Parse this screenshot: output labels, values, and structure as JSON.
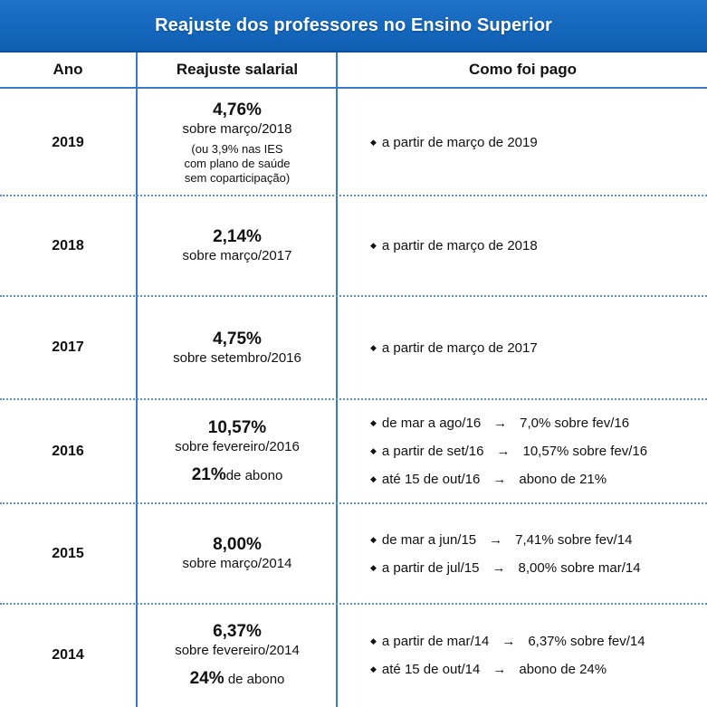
{
  "title": "Reajuste dos professores no Ensino Superior",
  "headers": {
    "year": "Ano",
    "adjustment": "Reajuste salarial",
    "payment": "Como foi pago"
  },
  "rows": [
    {
      "year": "2019",
      "percent": "4,76%",
      "reference": "sobre março/2018",
      "note_lines": [
        "(ou 3,9% nas IES",
        "com plano de saúde",
        "sem coparticipação)"
      ],
      "payments": [
        {
          "text": "a partir de março de 2019"
        }
      ]
    },
    {
      "year": "2018",
      "percent": "2,14%",
      "reference": "sobre março/2017",
      "payments": [
        {
          "text": "a partir de março de 2018"
        }
      ]
    },
    {
      "year": "2017",
      "percent": "4,75%",
      "reference": "sobre setembro/2016",
      "payments": [
        {
          "text": "a partir de março de 2017"
        }
      ]
    },
    {
      "year": "2016",
      "percent": "10,57%",
      "reference": "sobre fevereiro/2016",
      "abono_percent": "21%",
      "abono_label": "de abono",
      "payments": [
        {
          "text": "de mar a ago/16",
          "arrow": "→",
          "result": "7,0% sobre fev/16"
        },
        {
          "text": "a partir de set/16",
          "arrow": "→",
          "result": "10,57% sobre fev/16"
        },
        {
          "text": "até 15 de out/16",
          "arrow": "→",
          "result": "abono de 21%"
        }
      ]
    },
    {
      "year": "2015",
      "percent": "8,00%",
      "reference": "sobre março/2014",
      "payments": [
        {
          "text": "de mar a jun/15",
          "arrow": "→",
          "result": "7,41% sobre fev/14"
        },
        {
          "text": "a partir de jul/15",
          "arrow": "→",
          "result": "8,00% sobre mar/14"
        }
      ]
    },
    {
      "year": "2014",
      "percent": "6,37%",
      "reference": "sobre fevereiro/2014",
      "abono_percent": "24%",
      "abono_label": "de abono",
      "payments": [
        {
          "text": "a partir de mar/14",
          "arrow": "→",
          "result": "6,37% sobre fev/14"
        },
        {
          "text": "até 15 de out/14",
          "arrow": "→",
          "result": "abono de 24%"
        }
      ]
    }
  ],
  "bullet_glyph": "◆",
  "colors": {
    "title_bg": "#1668c0",
    "rule": "#3a79c9",
    "dotted": "#5b8fd0"
  }
}
